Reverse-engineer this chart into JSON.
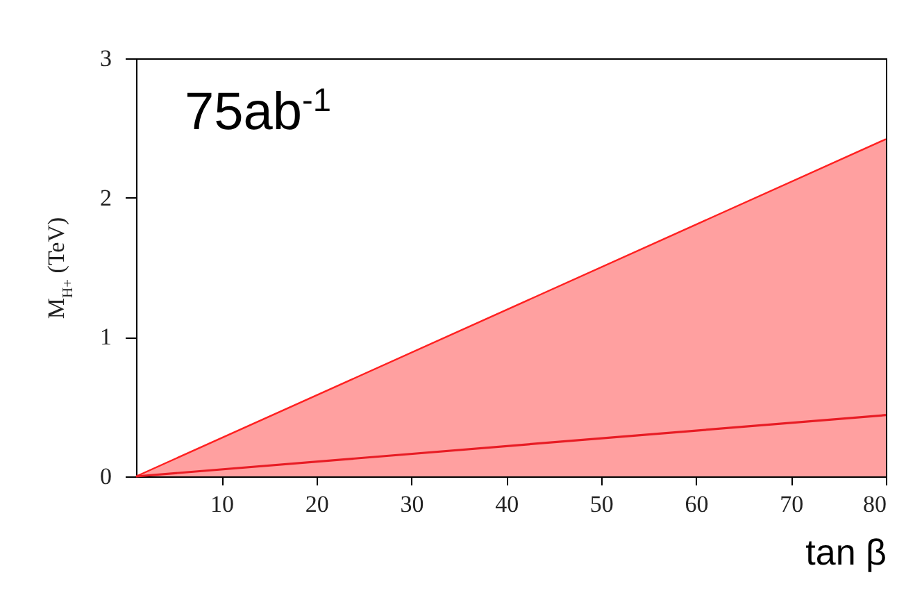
{
  "chart_data": {
    "type": "area",
    "xlabel": "tan β",
    "ylabel": "M$_{H+}$ (TeV)",
    "annotations": [
      "75ab$^{-1}$"
    ],
    "xlim": [
      1,
      80
    ],
    "xticks": [
      10,
      20,
      30,
      40,
      50,
      60,
      70,
      80
    ],
    "ylim": [
      0,
      3
    ],
    "yticks": [
      0,
      1,
      2,
      3
    ],
    "x": [
      1,
      80
    ],
    "series": [
      {
        "type": "area",
        "color": "#ffa0a0",
        "values": [
          0,
          2.42
        ]
      },
      {
        "type": "line",
        "color": "#e81c24",
        "values": [
          0,
          0.44
        ]
      }
    ]
  }
}
